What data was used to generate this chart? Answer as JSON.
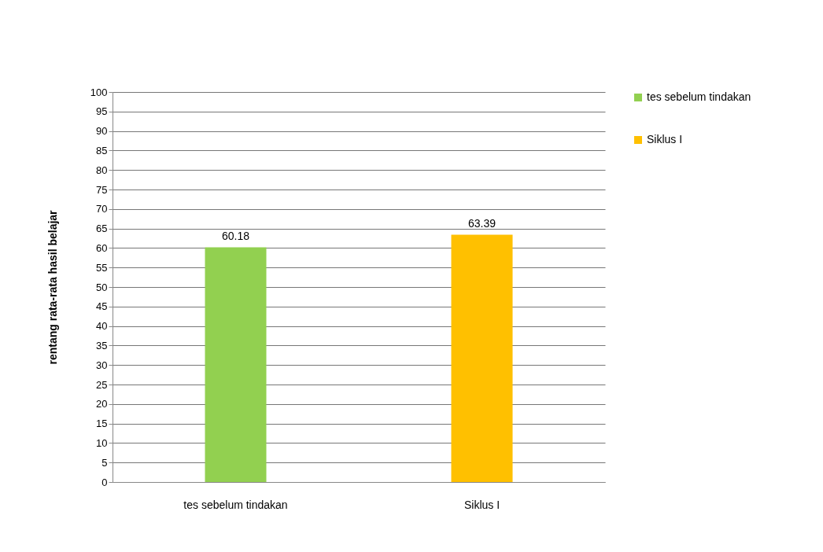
{
  "chart_data": {
    "type": "bar",
    "ylabel": "rentang rata-rata hasil belajar",
    "categories": [
      "tes sebelum tindakan",
      "Siklus I"
    ],
    "series": [
      {
        "name": "tes sebelum tindakan",
        "color": "#92d050",
        "values": [
          60.18,
          null
        ]
      },
      {
        "name": "Siklus I",
        "color": "#ffc000",
        "values": [
          null,
          63.39
        ]
      }
    ],
    "ylim": [
      0,
      100
    ],
    "yticks": [
      0,
      5,
      10,
      15,
      20,
      25,
      30,
      35,
      40,
      45,
      50,
      55,
      60,
      65,
      70,
      75,
      80,
      85,
      90,
      95,
      100
    ],
    "grid": "y",
    "legend": "right",
    "data_labels": true
  }
}
